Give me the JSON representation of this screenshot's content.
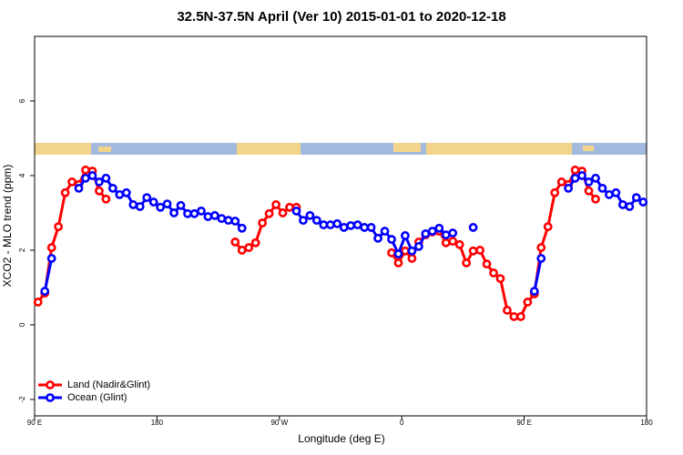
{
  "chart_data": {
    "type": "line",
    "title": "32.5N-37.5N April (Ver 10)   2015-01-01 to 2020-12-18",
    "xlabel": "Longitude (deg E)",
    "ylabel": "XCO2 - MLO trend (ppm)",
    "xlim": [
      90,
      540
    ],
    "xticks": [
      {
        "value": 90,
        "label": "90 E"
      },
      {
        "value": 180,
        "label": "180"
      },
      {
        "value": 270,
        "label": "90 W"
      },
      {
        "value": 360,
        "label": "0"
      },
      {
        "value": 450,
        "label": "90 E"
      },
      {
        "value": 540,
        "label": "180"
      }
    ],
    "ylim": [
      -2.44,
      7.73
    ],
    "yticks": [
      -2,
      0,
      2,
      4,
      6
    ],
    "grid": false,
    "legend": "bottom-left",
    "x": [
      92.5,
      97.5,
      102.5,
      107.5,
      112.5,
      117.5,
      122.5,
      127.5,
      132.5,
      137.5,
      142.5,
      147.5,
      152.5,
      157.5,
      162.5,
      167.5,
      172.5,
      177.5,
      182.5,
      187.5,
      192.5,
      197.5,
      202.5,
      207.5,
      212.5,
      217.5,
      222.5,
      227.5,
      232.5,
      237.5,
      242.5,
      247.5,
      252.5,
      257.5,
      262.5,
      267.5,
      272.5,
      277.5,
      282.5,
      287.5,
      292.5,
      297.5,
      302.5,
      307.5,
      312.5,
      317.5,
      322.5,
      327.5,
      332.5,
      337.5,
      342.5,
      347.5,
      352.5,
      357.5,
      362.5,
      367.5,
      372.5,
      377.5,
      382.5,
      387.5,
      392.5,
      397.5,
      402.5,
      407.5,
      412.5,
      417.5,
      422.5,
      427.5,
      432.5,
      437.5,
      442.5,
      447.5,
      452.5,
      457.5,
      462.5,
      467.5,
      472.5,
      477.5,
      482.5,
      487.5,
      492.5,
      497.5,
      502.5,
      507.5,
      512.5,
      517.5,
      522.5,
      527.5,
      532.5,
      537.5
    ],
    "series": [
      {
        "name": "Land (Nadir&Glint)",
        "color": "#ff0000",
        "values": [
          0.61,
          0.85,
          2.07,
          2.63,
          3.54,
          3.83,
          3.76,
          4.15,
          4.12,
          3.59,
          3.37,
          null,
          null,
          null,
          null,
          null,
          null,
          null,
          null,
          null,
          null,
          null,
          null,
          null,
          null,
          null,
          null,
          null,
          null,
          2.22,
          2.0,
          2.07,
          2.2,
          2.73,
          2.98,
          3.22,
          3.0,
          3.15,
          3.15,
          null,
          null,
          null,
          null,
          null,
          null,
          null,
          null,
          null,
          null,
          null,
          null,
          null,
          1.93,
          1.66,
          1.98,
          1.78,
          2.22,
          2.41,
          2.49,
          2.51,
          2.2,
          2.24,
          2.15,
          1.66,
          1.98,
          2.0,
          1.63,
          1.39,
          1.24,
          0.39,
          0.22,
          0.22,
          0.61,
          0.83,
          2.07,
          2.63,
          3.54,
          3.83,
          3.76,
          4.15,
          4.12,
          3.59,
          3.37,
          null,
          null,
          null,
          null,
          null,
          null,
          null
        ]
      },
      {
        "name": "Ocean (Glint)",
        "color": "#0000ff",
        "values": [
          null,
          0.9,
          1.78,
          null,
          null,
          null,
          3.66,
          3.93,
          4.0,
          3.83,
          3.93,
          3.66,
          3.49,
          3.54,
          3.22,
          3.17,
          3.41,
          3.29,
          3.15,
          3.24,
          3.0,
          3.2,
          2.98,
          2.98,
          3.05,
          2.9,
          2.93,
          2.85,
          2.8,
          2.78,
          2.59,
          null,
          null,
          null,
          null,
          null,
          null,
          null,
          3.05,
          2.8,
          2.93,
          2.8,
          2.68,
          2.68,
          2.71,
          2.61,
          2.66,
          2.68,
          2.61,
          2.61,
          2.32,
          2.51,
          2.29,
          1.9,
          2.39,
          1.98,
          2.1,
          2.44,
          2.51,
          2.59,
          2.41,
          2.46,
          null,
          null,
          2.61,
          null,
          null,
          null,
          null,
          null,
          null,
          null,
          null,
          0.9,
          1.78,
          null,
          null,
          null,
          3.66,
          3.93,
          4.0,
          3.83,
          3.93,
          3.66,
          3.49,
          3.54,
          3.22,
          3.17,
          3.41,
          3.29
        ]
      }
    ]
  }
}
